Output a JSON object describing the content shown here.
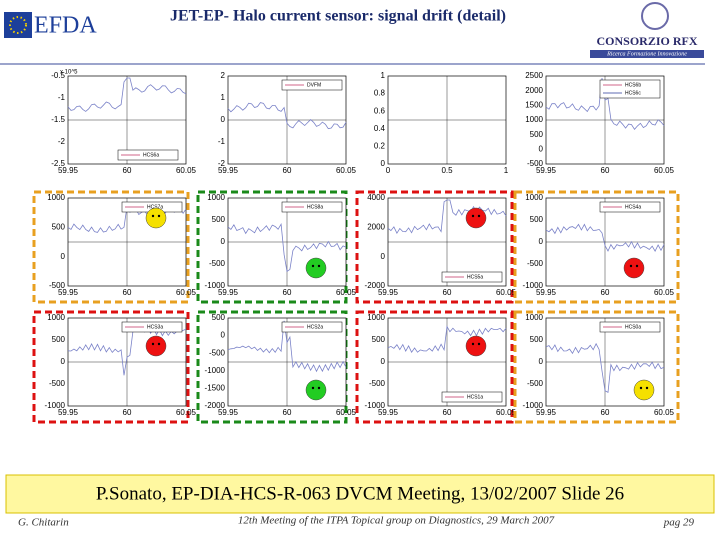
{
  "header": {
    "title": "JET-EP- Halo current sensor: signal drift (detail)",
    "logo_left": "EFDA",
    "logo_right": "CONSORZIO RFX",
    "logo_right_sub": "Ricerca Formazione Innovazione"
  },
  "panels": [
    {
      "exponent": "x 10^5",
      "yticks": [
        "-0.5",
        "-1",
        "-1.5",
        "-2",
        "-2.5"
      ],
      "xticks": [
        "59.95",
        "60",
        "60.05"
      ],
      "legend": [
        "HCS6a"
      ]
    },
    {
      "yticks": [
        "2",
        "1",
        "0",
        "-1",
        "-2"
      ],
      "xticks": [
        "59.95",
        "60",
        "60.05"
      ],
      "legend": [
        "DVFM"
      ]
    },
    {
      "yticks": [
        "1",
        "0.8",
        "0.6",
        "0.4",
        "0.2",
        "0"
      ],
      "xticks": [
        "0",
        "0.5",
        "1"
      ]
    },
    {
      "yticks": [
        "2500",
        "2000",
        "1500",
        "1000",
        "500",
        "0",
        "-500"
      ],
      "xticks": [
        "59.95",
        "60",
        "60.05"
      ],
      "legend": [
        "HCS6b",
        "HCS6c"
      ]
    },
    {
      "yticks": [
        "1000",
        "500",
        "0",
        "-500"
      ],
      "xticks": [
        "59.95",
        "60",
        "60.05"
      ],
      "legend": [
        "HCS7a"
      ],
      "frame": "#e8a020",
      "face": "#f5e000"
    },
    {
      "yticks": [
        "1000",
        "500",
        "0",
        "-500",
        "-1000"
      ],
      "xticks": [
        "59.95",
        "60",
        "60.05"
      ],
      "legend": [
        "HCS8a"
      ],
      "frame": "#1a8a1a",
      "face": "#22cc22"
    },
    {
      "yticks": [
        "4000",
        "2000",
        "0",
        "-2000"
      ],
      "xticks": [
        "59.95",
        "60",
        "60.05"
      ],
      "legend": [
        "HCS5a"
      ],
      "frame": "#dd1111",
      "face": "#ee1111"
    },
    {
      "yticks": [
        "1000",
        "500",
        "0",
        "-500",
        "-1000"
      ],
      "xticks": [
        "59.95",
        "60",
        "60.05"
      ],
      "legend": [
        "HCS4a"
      ],
      "frame": "#e8a020",
      "face": "#ee1111"
    },
    {
      "yticks": [
        "1000",
        "500",
        "0",
        "-500",
        "-1000"
      ],
      "xticks": [
        "59.95",
        "60",
        "60.05"
      ],
      "legend": [
        "HCS3a"
      ],
      "frame": "#dd1111",
      "face": "#ee1111"
    },
    {
      "yticks": [
        "500",
        "0",
        "-500",
        "-1000",
        "-1500",
        "-2000"
      ],
      "xticks": [
        "59.95",
        "60",
        "60.05"
      ],
      "legend": [
        "HCS2a"
      ],
      "frame": "#1a8a1a",
      "face": "#22cc22"
    },
    {
      "yticks": [
        "1000",
        "500",
        "0",
        "-500",
        "-1000"
      ],
      "xticks": [
        "59.95",
        "60",
        "60.05"
      ],
      "legend": [
        "HCS1a"
      ],
      "frame": "#dd1111",
      "face": "#ee1111"
    },
    {
      "yticks": [
        "1000",
        "500",
        "0",
        "-500",
        "-1000"
      ],
      "xticks": [
        "59.95",
        "60",
        "60.05"
      ],
      "legend": [
        "HCS0a"
      ],
      "frame": "#e8a020",
      "face": "#f5e000"
    }
  ],
  "footer": {
    "banner": "P.Sonato, EP-DIA-HCS-R-063 DVCM  Meeting, 13/02/2007 Slide 26",
    "author": "G. Chitarin",
    "event": "12th Meeting of the ITPA Topical group on Diagnostics, 29 March 2007",
    "page": "pag 29"
  }
}
